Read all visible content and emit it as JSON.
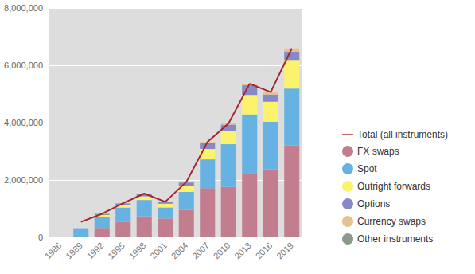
{
  "chart_data": {
    "type": "bar",
    "stacked": true,
    "grid": true,
    "legend": "right",
    "categories": [
      "1986",
      "1989",
      "1992",
      "1995",
      "1998",
      "2001",
      "2004",
      "2007",
      "2010",
      "2013",
      "2016",
      "2019"
    ],
    "ylim": [
      0,
      8000000
    ],
    "yticks": [
      0,
      {
        "value": 2000000,
        "label": "2,000,000"
      },
      {
        "value": 4000000,
        "label": "4,000,000"
      },
      {
        "value": 6000000,
        "label": "6,000,000"
      },
      {
        "value": 8000000,
        "label": "8,000,000"
      }
    ],
    "series": [
      {
        "name": "Total (all instruments)",
        "type": "line",
        "color": "#a3262f",
        "values": [
          null,
          540000,
          820000,
          1190000,
          1527000,
          1239000,
          1934000,
          3324000,
          3973000,
          5357000,
          5066000,
          6590000
        ]
      },
      {
        "name": "FX swaps",
        "type": "bar",
        "color": "#c27d8e",
        "values": [
          null,
          null,
          324000,
          546000,
          734000,
          656000,
          954000,
          1714000,
          1759000,
          2240000,
          2378000,
          3202000
        ]
      },
      {
        "name": "Spot",
        "type": "bar",
        "color": "#66b2e2",
        "values": [
          null,
          317000,
          394000,
          494000,
          568000,
          386000,
          631000,
          1005000,
          1489000,
          2047000,
          1652000,
          1987000
        ]
      },
      {
        "name": "Outright forwards",
        "type": "bar",
        "color": "#fbf36c",
        "values": [
          null,
          null,
          58000,
          97000,
          128000,
          130000,
          209000,
          362000,
          475000,
          679000,
          700000,
          999000
        ]
      },
      {
        "name": "Options",
        "type": "bar",
        "color": "#8689c6",
        "values": [
          null,
          null,
          null,
          41000,
          87000,
          60000,
          119000,
          212000,
          207000,
          337000,
          254000,
          294000
        ]
      },
      {
        "name": "Currency swaps",
        "type": "bar",
        "color": "#e9c090",
        "values": [
          null,
          null,
          null,
          4000,
          10000,
          7000,
          21000,
          31000,
          43000,
          54000,
          82000,
          108000
        ]
      },
      {
        "name": "Other instruments",
        "type": "bar",
        "color": "#8c9a8c",
        "values": [
          null,
          null,
          44000,
          8000,
          null,
          null,
          null,
          null,
          null,
          null,
          null,
          null
        ]
      }
    ]
  }
}
